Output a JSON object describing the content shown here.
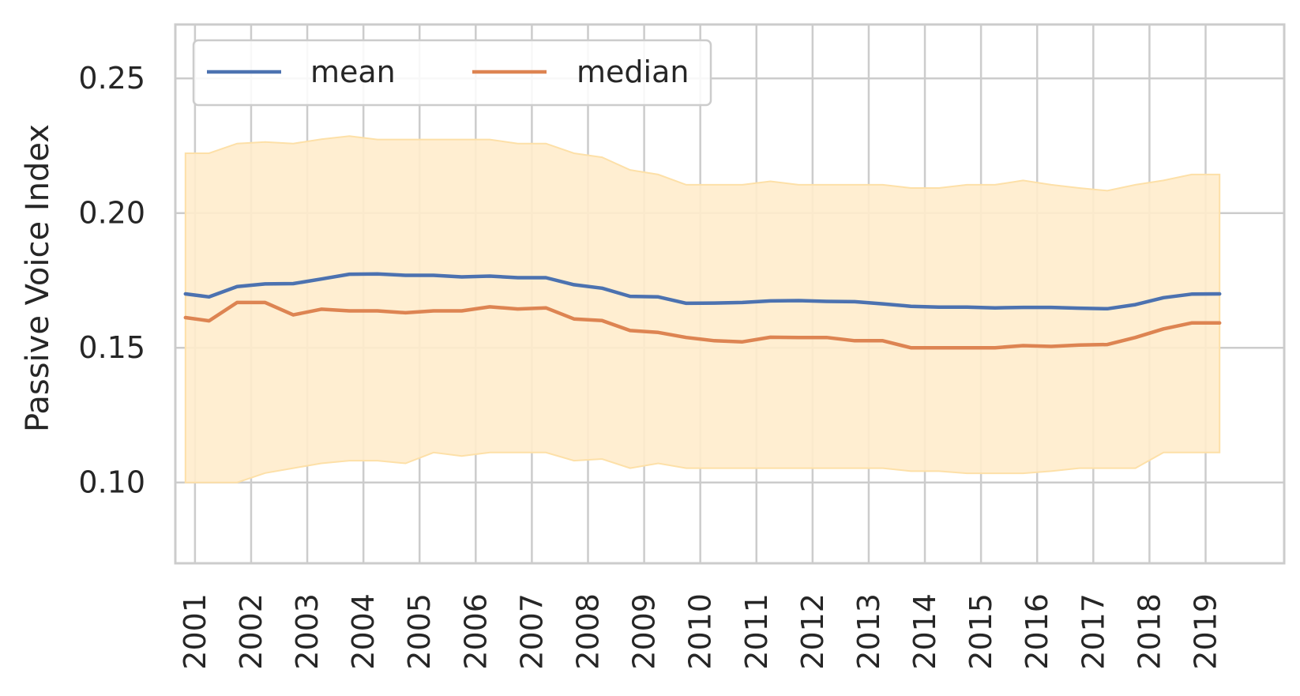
{
  "chart_data": {
    "type": "line",
    "title": "",
    "xlabel": "",
    "ylabel": "Passive Voice Index",
    "x_ticks": [
      "2001",
      "2002",
      "2003",
      "2004",
      "2005",
      "2006",
      "2007",
      "2008",
      "2009",
      "2010",
      "2011",
      "2012",
      "2013",
      "2014",
      "2015",
      "2016",
      "2017",
      "2018",
      "2019"
    ],
    "y_ticks": [
      "0.10",
      "0.15",
      "0.20",
      "0.25"
    ],
    "xlim": [
      2000.65,
      2020.4
    ],
    "ylim": [
      0.07,
      0.27
    ],
    "grid": true,
    "legend_position": "top-left",
    "x": [
      2000.83,
      2001.25,
      2001.75,
      2002.25,
      2002.75,
      2003.25,
      2003.75,
      2004.25,
      2004.75,
      2005.25,
      2005.75,
      2006.25,
      2006.75,
      2007.25,
      2007.75,
      2008.25,
      2008.75,
      2009.25,
      2009.75,
      2010.25,
      2010.75,
      2011.25,
      2011.75,
      2012.25,
      2012.75,
      2013.25,
      2013.75,
      2014.25,
      2014.75,
      2015.25,
      2015.75,
      2016.25,
      2016.75,
      2017.25,
      2017.75,
      2018.25,
      2018.75,
      2019.25
    ],
    "series": [
      {
        "name": "mean",
        "color": "#4c72b0",
        "values": [
          0.17,
          0.1689,
          0.1727,
          0.1737,
          0.1738,
          0.1755,
          0.1773,
          0.1774,
          0.1769,
          0.1769,
          0.1763,
          0.1766,
          0.176,
          0.176,
          0.1734,
          0.1721,
          0.1691,
          0.1689,
          0.1665,
          0.1666,
          0.1668,
          0.1674,
          0.1675,
          0.1672,
          0.1671,
          0.1663,
          0.1654,
          0.1651,
          0.1651,
          0.1648,
          0.165,
          0.165,
          0.1647,
          0.1645,
          0.166,
          0.1686,
          0.1699,
          0.17
        ]
      },
      {
        "name": "median",
        "color": "#dd8452",
        "values": [
          0.1612,
          0.16,
          0.1668,
          0.1668,
          0.1622,
          0.1643,
          0.1637,
          0.1637,
          0.163,
          0.1637,
          0.1637,
          0.1652,
          0.1644,
          0.1648,
          0.1607,
          0.1601,
          0.1564,
          0.1557,
          0.1538,
          0.1526,
          0.1522,
          0.1539,
          0.1538,
          0.1538,
          0.1526,
          0.1526,
          0.15,
          0.15,
          0.15,
          0.15,
          0.1508,
          0.1505,
          0.151,
          0.1512,
          0.1538,
          0.157,
          0.1592,
          0.1592
        ]
      }
    ],
    "band": {
      "color": "#ffeccc",
      "edge_color": "#fde0a8",
      "upper": [
        0.2222,
        0.2222,
        0.2258,
        0.2264,
        0.2258,
        0.2274,
        0.2286,
        0.2273,
        0.2273,
        0.2273,
        0.2273,
        0.2273,
        0.2258,
        0.2258,
        0.2222,
        0.2207,
        0.216,
        0.2143,
        0.2105,
        0.2105,
        0.2105,
        0.2118,
        0.2105,
        0.2105,
        0.2105,
        0.2105,
        0.2093,
        0.2093,
        0.2105,
        0.2105,
        0.2121,
        0.2105,
        0.2093,
        0.2083,
        0.2105,
        0.2121,
        0.2143,
        0.2143
      ],
      "lower": [
        0.1,
        0.1,
        0.1,
        0.1035,
        0.1053,
        0.1071,
        0.1081,
        0.1081,
        0.1071,
        0.1111,
        0.1098,
        0.1111,
        0.1111,
        0.1111,
        0.1081,
        0.1087,
        0.1053,
        0.1071,
        0.1053,
        0.1053,
        0.1053,
        0.1053,
        0.1053,
        0.1053,
        0.1053,
        0.1053,
        0.1042,
        0.1042,
        0.1034,
        0.1034,
        0.1034,
        0.1042,
        0.1053,
        0.1053,
        0.1053,
        0.1111,
        0.1111,
        0.1111
      ]
    }
  }
}
